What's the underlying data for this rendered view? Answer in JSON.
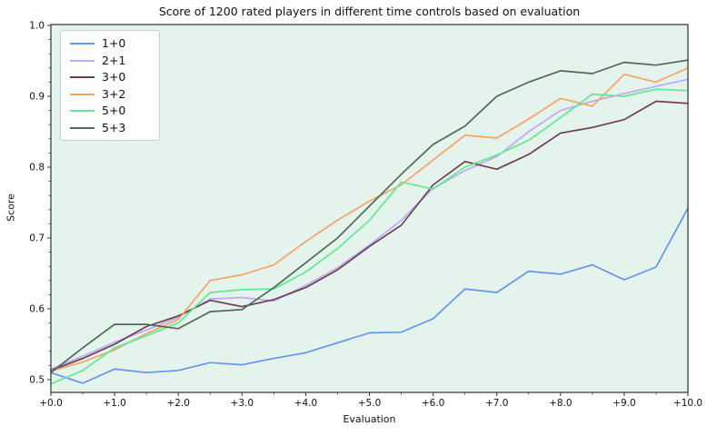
{
  "chart_data": {
    "type": "line",
    "title": "Score of 1200 rated players in different time controls based on evaluation",
    "xlabel": "Evaluation",
    "ylabel": "Score",
    "legend_position": "upper left",
    "grid": false,
    "plot_bg": "#e4f3ec",
    "spine_color": "#3f3f3f",
    "tick_color": "#333333",
    "text_color": "#111111",
    "xlim": [
      0,
      10
    ],
    "ylim": [
      0.482,
      1.0013
    ],
    "xticks": {
      "values": [
        0,
        1,
        2,
        3,
        4,
        5,
        6,
        7,
        8,
        9,
        10
      ],
      "labels": [
        "+0.0",
        "+1.0",
        "+2.0",
        "+3.0",
        "+4.0",
        "+5.0",
        "+6.0",
        "+7.0",
        "+8.0",
        "+9.0",
        "+10.0"
      ]
    },
    "yticks": {
      "values": [
        0.5,
        0.6,
        0.7,
        0.8,
        0.9,
        1.0
      ],
      "labels": [
        "0.5",
        "0.6",
        "0.7",
        "0.8",
        "0.9",
        "1.0"
      ]
    },
    "minor_x_step": 0.5,
    "minor_y_step": 0.02,
    "x": [
      0,
      0.5,
      1,
      1.5,
      2,
      2.5,
      3,
      3.5,
      4,
      4.5,
      5,
      5.5,
      6,
      6.5,
      7,
      7.5,
      8,
      8.5,
      9,
      9.5,
      10
    ],
    "series": [
      {
        "name": "1+0",
        "color": "#6495ed",
        "values": [
          0.51,
          0.495,
          0.515,
          0.51,
          0.513,
          0.524,
          0.521,
          0.53,
          0.538,
          0.552,
          0.566,
          0.567,
          0.586,
          0.628,
          0.623,
          0.653,
          0.649,
          0.662,
          0.641,
          0.659,
          0.742
        ]
      },
      {
        "name": "2+1",
        "color": "#c0a9f4",
        "values": [
          0.515,
          0.533,
          0.553,
          0.57,
          0.588,
          0.614,
          0.616,
          0.611,
          0.633,
          0.658,
          0.69,
          0.725,
          0.77,
          0.795,
          0.815,
          0.85,
          0.88,
          0.893,
          0.904,
          0.914,
          0.924
        ]
      },
      {
        "name": "3+0",
        "color": "#6e3e52",
        "values": [
          0.513,
          0.53,
          0.55,
          0.575,
          0.59,
          0.612,
          0.603,
          0.613,
          0.63,
          0.655,
          0.688,
          0.718,
          0.775,
          0.808,
          0.797,
          0.818,
          0.848,
          0.856,
          0.867,
          0.893,
          0.89
        ]
      },
      {
        "name": "3+2",
        "color": "#f5a467",
        "values": [
          0.512,
          0.525,
          0.542,
          0.565,
          0.585,
          0.64,
          0.648,
          0.662,
          0.695,
          0.725,
          0.752,
          0.775,
          0.81,
          0.845,
          0.841,
          0.868,
          0.897,
          0.886,
          0.931,
          0.92,
          0.94
        ]
      },
      {
        "name": "5+0",
        "color": "#62e892",
        "values": [
          0.494,
          0.513,
          0.545,
          0.562,
          0.58,
          0.623,
          0.627,
          0.628,
          0.652,
          0.685,
          0.725,
          0.779,
          0.769,
          0.8,
          0.817,
          0.838,
          0.87,
          0.903,
          0.9,
          0.91,
          0.908
        ]
      },
      {
        "name": "5+3",
        "color": "#4e6a58",
        "values": [
          0.51,
          0.545,
          0.578,
          0.578,
          0.572,
          0.596,
          0.599,
          0.63,
          0.665,
          0.7,
          0.745,
          0.79,
          0.832,
          0.858,
          0.9,
          0.92,
          0.936,
          0.932,
          0.948,
          0.944,
          0.951
        ]
      }
    ]
  }
}
